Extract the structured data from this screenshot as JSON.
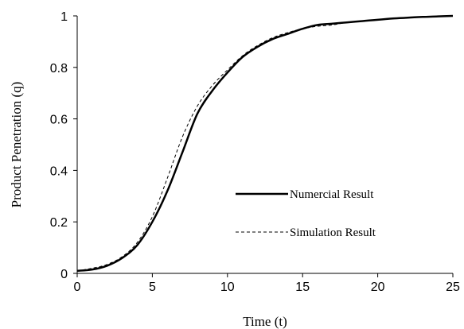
{
  "chart_data": {
    "type": "line",
    "xlabel": "Time (t)",
    "ylabel": "Product Penetration (q)",
    "xlim": [
      0,
      25
    ],
    "ylim": [
      0,
      1
    ],
    "xticks": [
      "0",
      "5",
      "10",
      "15",
      "20",
      "25"
    ],
    "yticks": [
      "0",
      "0.2",
      "0.4",
      "0.6",
      "0.8",
      "1"
    ],
    "legend_position": "right-center",
    "grid": false,
    "series": [
      {
        "name": "Numercial Result",
        "style": "solid",
        "color": "#000000",
        "x": [
          0,
          1,
          2,
          3,
          4,
          5,
          6,
          7,
          8,
          9,
          10,
          11,
          12,
          13,
          14,
          15,
          16,
          17,
          18,
          19,
          20,
          21,
          22,
          23,
          24,
          25
        ],
        "y": [
          0.01,
          0.015,
          0.03,
          0.06,
          0.11,
          0.2,
          0.32,
          0.47,
          0.62,
          0.71,
          0.78,
          0.84,
          0.88,
          0.91,
          0.93,
          0.95,
          0.965,
          0.97,
          0.975,
          0.98,
          0.985,
          0.99,
          0.993,
          0.996,
          0.998,
          1.0
        ]
      },
      {
        "name": "Simulation Result",
        "style": "dashed",
        "color": "#000000",
        "x": [
          0,
          1,
          2,
          3,
          4,
          5,
          6,
          7,
          8,
          9,
          10,
          11,
          12,
          13,
          14,
          15,
          16,
          17,
          18,
          19,
          20,
          21,
          22,
          23,
          24,
          25
        ],
        "y": [
          0.01,
          0.02,
          0.035,
          0.065,
          0.12,
          0.22,
          0.37,
          0.53,
          0.65,
          0.73,
          0.79,
          0.845,
          0.885,
          0.915,
          0.935,
          0.95,
          0.96,
          0.965,
          0.975,
          0.98,
          0.985,
          0.99,
          0.993,
          0.996,
          0.998,
          1.0
        ]
      }
    ]
  }
}
